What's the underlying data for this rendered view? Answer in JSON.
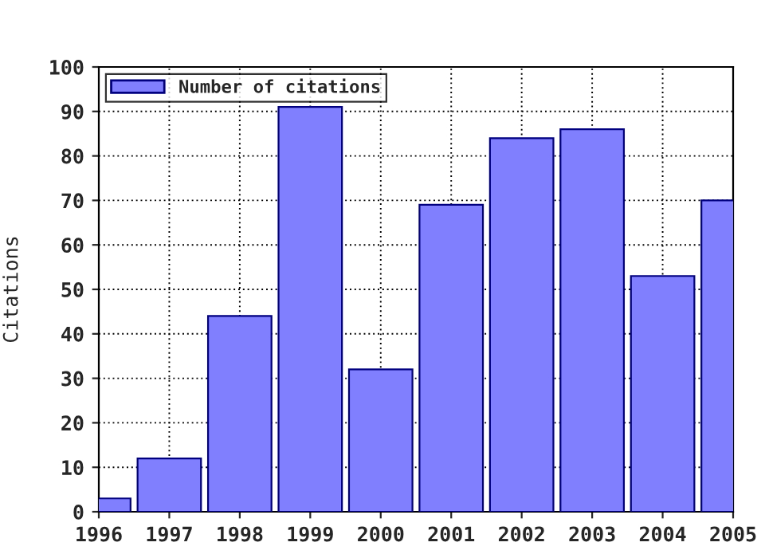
{
  "chart_data": {
    "type": "bar",
    "ylabel": "Citations",
    "x": [
      1996,
      1997,
      1998,
      1999,
      2000,
      2001,
      2002,
      2003,
      2004,
      2005
    ],
    "series": [
      {
        "name": "Number of citations",
        "color": "#8080ff",
        "values": [
          3,
          12,
          44,
          91,
          32,
          69,
          84,
          86,
          53,
          70
        ]
      }
    ],
    "xlim": [
      1996,
      2005
    ],
    "xticks": [
      1996,
      1997,
      1998,
      1999,
      2000,
      2001,
      2002,
      2003,
      2004,
      2005
    ],
    "ylim": [
      0,
      100
    ],
    "yticks": [
      0,
      10,
      20,
      30,
      40,
      50,
      60,
      70,
      80,
      90,
      100
    ],
    "grid": true,
    "legend": "top left"
  }
}
